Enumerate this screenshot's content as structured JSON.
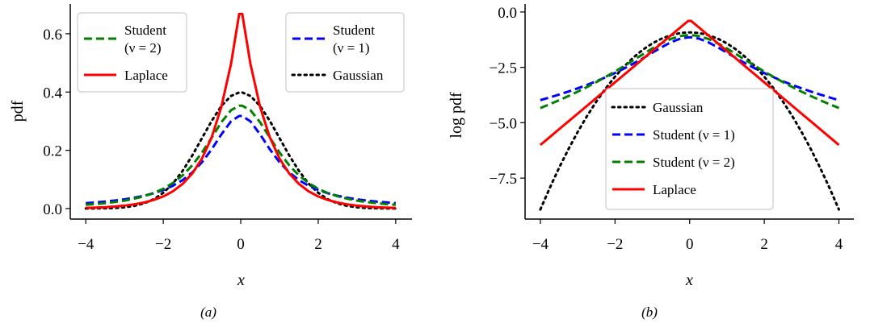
{
  "chart_data": [
    {
      "type": "line",
      "caption": "(a)",
      "xlabel": "x",
      "ylabel": "pdf",
      "xlim": [
        -4.4,
        4.42
      ],
      "ylim": [
        -0.036,
        0.702
      ],
      "xticks": [
        -4,
        -2,
        0,
        2,
        4
      ],
      "xtick_labels": [
        "−4",
        "−2",
        "0",
        "2",
        "4"
      ],
      "yticks": [
        0,
        0.2,
        0.4,
        0.6
      ],
      "ytick_labels": [
        "0.0",
        "0.2",
        "0.4",
        "0.6"
      ],
      "grid": false,
      "legends": [
        {
          "placement": "upper-left",
          "entries": [
            {
              "series": "student2",
              "lines": [
                "Student",
                "(ν = 2)"
              ]
            },
            {
              "series": "laplace",
              "lines": [
                "Laplace"
              ]
            }
          ]
        },
        {
          "placement": "upper-right",
          "entries": [
            {
              "series": "student1",
              "lines": [
                "Student",
                "(ν = 1)"
              ]
            },
            {
              "series": "gaussian",
              "lines": [
                "Gaussian"
              ]
            }
          ]
        }
      ],
      "x": [
        -4,
        -3.75,
        -3.5,
        -3.25,
        -3,
        -2.75,
        -2.5,
        -2.25,
        -2,
        -1.75,
        -1.5,
        -1.25,
        -1,
        -0.75,
        -0.5,
        -0.25,
        -0.04,
        0.04,
        0.25,
        0.5,
        0.75,
        1,
        1.25,
        1.5,
        1.75,
        2,
        2.25,
        2.5,
        2.75,
        3,
        3.25,
        3.5,
        3.75,
        4
      ],
      "series": [
        {
          "id": "gaussian",
          "name": "Gaussian",
          "color": "#000000",
          "style": "dotted",
          "values": [
            0.0001,
            0.0004,
            0.0009,
            0.002,
            0.0044,
            0.0091,
            0.0175,
            0.0317,
            0.054,
            0.0863,
            0.1295,
            0.1826,
            0.242,
            0.3011,
            0.3521,
            0.3867,
            0.3986,
            0.3986,
            0.3867,
            0.3521,
            0.3011,
            0.242,
            0.1826,
            0.1295,
            0.0863,
            0.054,
            0.0317,
            0.0175,
            0.0091,
            0.0044,
            0.002,
            0.0009,
            0.0004,
            0.0001
          ]
        },
        {
          "id": "student1",
          "name": "Student (ν = 1)",
          "color": "#0000ff",
          "style": "dashed",
          "values": [
            0.0187,
            0.0211,
            0.024,
            0.0275,
            0.0318,
            0.0372,
            0.0439,
            0.0525,
            0.0637,
            0.0784,
            0.0979,
            0.1242,
            0.1592,
            0.2037,
            0.2546,
            0.2996,
            0.3178,
            0.3178,
            0.2996,
            0.2546,
            0.2037,
            0.1592,
            0.1242,
            0.0979,
            0.0784,
            0.0637,
            0.0525,
            0.0439,
            0.0372,
            0.0318,
            0.0275,
            0.024,
            0.0211,
            0.0187
          ]
        },
        {
          "id": "student2",
          "name": "Student (ν = 2)",
          "color": "#008000",
          "style": "dashed",
          "values": [
            0.0131,
            0.0155,
            0.0186,
            0.0225,
            0.0274,
            0.0338,
            0.0422,
            0.0533,
            0.068,
            0.0878,
            0.1141,
            0.1487,
            0.1925,
            0.2437,
            0.2962,
            0.3376,
            0.353,
            0.353,
            0.3376,
            0.2962,
            0.2437,
            0.1925,
            0.1487,
            0.1141,
            0.0878,
            0.068,
            0.0533,
            0.0422,
            0.0338,
            0.0274,
            0.0225,
            0.0186,
            0.0155,
            0.0131
          ]
        },
        {
          "id": "laplace",
          "name": "Laplace",
          "color": "#ff0000",
          "style": "solid",
          "values": [
            0.0025,
            0.0035,
            0.005,
            0.0071,
            0.0102,
            0.0145,
            0.0206,
            0.0294,
            0.0418,
            0.0595,
            0.0848,
            0.1207,
            0.1719,
            0.2449,
            0.3487,
            0.4965,
            0.668,
            0.668,
            0.4965,
            0.3487,
            0.2449,
            0.1719,
            0.1207,
            0.0848,
            0.0595,
            0.0418,
            0.0294,
            0.0206,
            0.0145,
            0.0102,
            0.0071,
            0.005,
            0.0035,
            0.0025
          ]
        }
      ]
    },
    {
      "type": "line",
      "caption": "(b)",
      "xlabel": "x",
      "ylabel": "log pdf",
      "xlim": [
        -4.41,
        4.4
      ],
      "ylim": [
        -9.35,
        0.36
      ],
      "xticks": [
        -4,
        -2,
        0,
        2,
        4
      ],
      "xtick_labels": [
        "−4",
        "−2",
        "0",
        "2",
        "4"
      ],
      "yticks": [
        0,
        -2.5,
        -5,
        -7.5
      ],
      "ytick_labels": [
        "0.0",
        "−2.5",
        "−5.0",
        "−7.5"
      ],
      "grid": false,
      "legends": [
        {
          "placement": "lower-center",
          "entries": [
            {
              "series": "gaussian",
              "lines": [
                "Gaussian"
              ]
            },
            {
              "series": "student1",
              "lines": [
                "Student (ν = 1)"
              ]
            },
            {
              "series": "student2",
              "lines": [
                "Student (ν = 2)"
              ]
            },
            {
              "series": "laplace",
              "lines": [
                "Laplace"
              ]
            }
          ]
        }
      ],
      "x": [
        -4,
        -3.75,
        -3.5,
        -3.25,
        -3,
        -2.75,
        -2.5,
        -2.25,
        -2,
        -1.75,
        -1.5,
        -1.25,
        -1,
        -0.75,
        -0.5,
        -0.25,
        -0.04,
        0.04,
        0.25,
        0.5,
        0.75,
        1,
        1.25,
        1.5,
        1.75,
        2,
        2.25,
        2.5,
        2.75,
        3,
        3.25,
        3.5,
        3.75,
        4
      ],
      "series": [
        {
          "id": "gaussian",
          "name": "Gaussian",
          "color": "#000000",
          "style": "dotted",
          "values": [
            -8.919,
            -7.95,
            -7.044,
            -6.2,
            -5.419,
            -4.7,
            -4.044,
            -3.45,
            -2.919,
            -2.45,
            -2.044,
            -1.7,
            -1.419,
            -1.2,
            -1.044,
            -0.95,
            -0.92,
            -0.92,
            -0.95,
            -1.044,
            -1.2,
            -1.419,
            -1.7,
            -2.044,
            -2.45,
            -2.919,
            -3.45,
            -4.044,
            -4.7,
            -5.419,
            -6.2,
            -7.044,
            -7.95,
            -8.919
          ]
        },
        {
          "id": "student1",
          "name": "Student (ν = 1)",
          "color": "#0000ff",
          "style": "dashed",
          "values": [
            -3.978,
            -3.857,
            -3.729,
            -3.593,
            -3.447,
            -3.292,
            -3.126,
            -2.947,
            -2.754,
            -2.547,
            -2.323,
            -2.086,
            -1.838,
            -1.591,
            -1.368,
            -1.205,
            -1.146,
            -1.146,
            -1.205,
            -1.368,
            -1.591,
            -1.838,
            -2.086,
            -2.323,
            -2.547,
            -2.754,
            -2.947,
            -3.126,
            -3.292,
            -3.447,
            -3.593,
            -3.729,
            -3.857,
            -3.978
          ]
        },
        {
          "id": "student2",
          "name": "Student (ν = 2)",
          "color": "#008000",
          "style": "dashed",
          "values": [
            -4.336,
            -4.165,
            -3.985,
            -3.796,
            -3.597,
            -3.387,
            -3.165,
            -2.932,
            -2.688,
            -2.433,
            -2.17,
            -1.906,
            -1.648,
            -1.411,
            -1.216,
            -1.086,
            -1.041,
            -1.041,
            -1.086,
            -1.216,
            -1.411,
            -1.648,
            -1.906,
            -2.17,
            -2.433,
            -2.688,
            -2.932,
            -3.165,
            -3.387,
            -3.597,
            -3.796,
            -3.985,
            -4.165,
            -4.336
          ]
        },
        {
          "id": "laplace",
          "name": "Laplace",
          "color": "#ff0000",
          "style": "solid",
          "values": [
            -6.003,
            -5.65,
            -5.296,
            -4.943,
            -4.589,
            -4.236,
            -3.882,
            -3.528,
            -3.175,
            -2.821,
            -2.468,
            -2.114,
            -1.761,
            -1.407,
            -1.054,
            -0.7,
            -0.404,
            -0.404,
            -0.7,
            -1.054,
            -1.407,
            -1.761,
            -2.114,
            -2.468,
            -2.821,
            -3.175,
            -3.528,
            -3.882,
            -4.236,
            -4.589,
            -4.943,
            -5.296,
            -5.65,
            -6.003
          ]
        }
      ]
    }
  ]
}
